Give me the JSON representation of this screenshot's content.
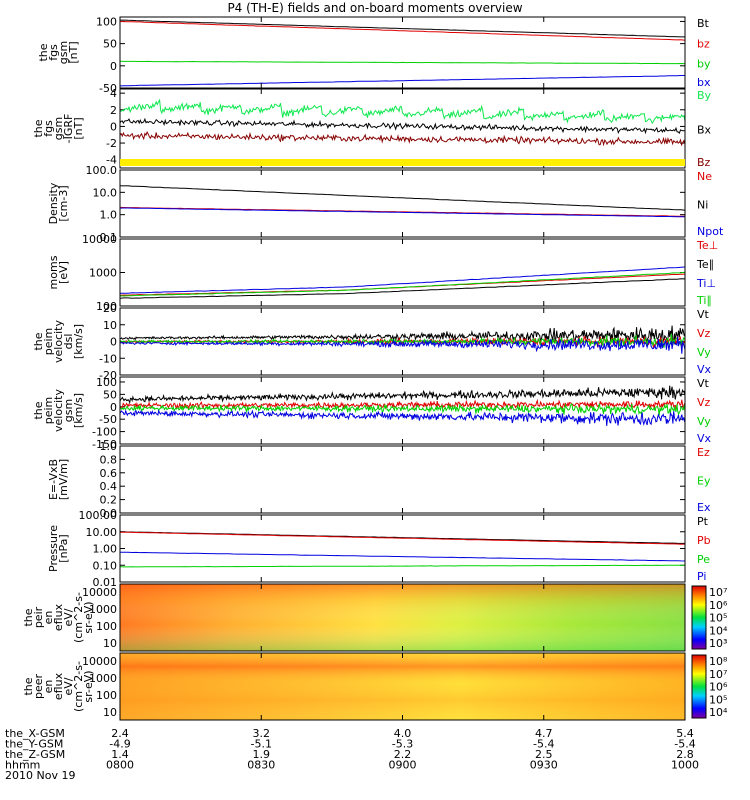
{
  "title": "P4 (TH-E) fields and on-board moments overview",
  "colors": {
    "black": "#000000",
    "red": "#e00000",
    "green": "#00d000",
    "blue": "#0000e0",
    "brightgreen": "#10e850",
    "darkred": "#880000",
    "yellow": "#ffee00"
  },
  "chart_data": [
    {
      "id": "fgs",
      "type": "line",
      "ylabel": [
        "the",
        "fgs",
        "gsm",
        "[nT]"
      ],
      "yticks": [
        "100",
        "50",
        "0",
        "-50"
      ],
      "ylim": [
        -50,
        110
      ],
      "x": [
        0,
        120
      ],
      "series": [
        {
          "name": "Bt",
          "color": "#000000",
          "values": [
            103,
            65
          ]
        },
        {
          "name": "bz",
          "color": "#e00000",
          "values": [
            100,
            58
          ]
        },
        {
          "name": "by",
          "color": "#00d000",
          "values": [
            10,
            5
          ]
        },
        {
          "name": "bx",
          "color": "#0000e0",
          "values": [
            -45,
            -22
          ]
        }
      ]
    },
    {
      "id": "fgs-dgsm",
      "type": "line",
      "ylabel": [
        "the",
        "fgs",
        "gsm",
        "-IGRF",
        "[nT]"
      ],
      "yticks": [
        "4",
        "2",
        "0",
        "-2",
        "-4"
      ],
      "ylim": [
        -5,
        4.5
      ],
      "series": [
        {
          "name": "By",
          "color": "#10e850",
          "start": 2.4,
          "end": 1.0,
          "noise": 0.6,
          "sawtooth": 1.0
        },
        {
          "name": "Bx",
          "color": "#000000",
          "start": 0.6,
          "end": -0.5,
          "noise": 0.45
        },
        {
          "name": "Bz",
          "color": "#880000",
          "start": -1.1,
          "end": -1.9,
          "noise": 0.55
        }
      ]
    },
    {
      "id": "density",
      "type": "line",
      "log": true,
      "ylabel": [
        "Density",
        "[cm-3]"
      ],
      "yticks": [
        "100.0",
        "10.0",
        "1.0",
        "0.1"
      ],
      "ylim": [
        0.1,
        100
      ],
      "series": [
        {
          "name": "Ne",
          "color": "#e00000",
          "values": [
            2.1,
            0.85
          ]
        },
        {
          "name": "Ni",
          "color": "#000000",
          "values": [
            20,
            1.6
          ]
        },
        {
          "name": "Npot",
          "color": "#0000e0",
          "values": [
            2.0,
            0.8
          ]
        }
      ]
    },
    {
      "id": "temp",
      "type": "line",
      "log": true,
      "ylabel": [
        "moms",
        "[eV]"
      ],
      "yticks": [
        "10000",
        "1000",
        "100"
      ],
      "ylim": [
        100,
        10000
      ],
      "series": [
        {
          "name": "Te⊥",
          "color": "#e00000",
          "values": [
            210,
            900
          ]
        },
        {
          "name": "Te∥",
          "color": "#000000",
          "values": [
            170,
            650
          ]
        },
        {
          "name": "Ti⊥",
          "color": "#0000e0",
          "values": [
            240,
            1450
          ]
        },
        {
          "name": "Ti∥",
          "color": "#00d000",
          "values": [
            200,
            1000
          ]
        }
      ]
    },
    {
      "id": "peim-dsl",
      "type": "line",
      "ylabel": [
        "the",
        "peim",
        "velocity",
        "dsl",
        "[km/s]"
      ],
      "yticks": [
        "20",
        "10",
        "0",
        "-10",
        "-20"
      ],
      "ylim": [
        -20,
        20
      ],
      "series": [
        {
          "name": "Vt",
          "color": "#000000",
          "base": 2,
          "noise0": 1,
          "noise1": 8
        },
        {
          "name": "Vz",
          "color": "#e00000",
          "base": 0,
          "noise0": 1,
          "noise1": 5
        },
        {
          "name": "Vy",
          "color": "#00d000",
          "base": 0,
          "noise0": 1,
          "noise1": 5
        },
        {
          "name": "Vx",
          "color": "#0000e0",
          "base": -1,
          "noise0": 1,
          "noise1": 7
        }
      ]
    },
    {
      "id": "peim-gsm",
      "type": "line",
      "ylabel": [
        "the",
        "peim",
        "velocity",
        "gsm",
        "[km/s]"
      ],
      "yticks": [
        "100",
        "50",
        "0",
        "-50",
        "-100",
        "-150"
      ],
      "ylim": [
        -150,
        120
      ],
      "series": [
        {
          "name": "Vt",
          "color": "#000000",
          "base": 30,
          "noise0": 15,
          "noise1": 35
        },
        {
          "name": "Vz",
          "color": "#e00000",
          "base": 5,
          "noise0": 15,
          "noise1": 25
        },
        {
          "name": "Vy",
          "color": "#00d000",
          "base": -5,
          "noise0": 15,
          "noise1": 30
        },
        {
          "name": "Vx",
          "color": "#0000e0",
          "base": -25,
          "noise0": 15,
          "noise1": 45
        }
      ]
    },
    {
      "id": "efield",
      "type": "line",
      "ylabel": [
        "E=-VxB",
        "[mV/m]"
      ],
      "yticks": [
        "1.0",
        "0.8",
        "0.6",
        "0.4",
        "0.2",
        "0.0"
      ],
      "ylim": [
        0,
        1
      ],
      "series": [
        {
          "name": "Ez",
          "color": "#e00000"
        },
        {
          "name": "Ey",
          "color": "#00d000"
        },
        {
          "name": "Ex",
          "color": "#0000e0"
        }
      ]
    },
    {
      "id": "pressure",
      "type": "line",
      "log": true,
      "ylabel": [
        "Pressure",
        "[nPa]"
      ],
      "yticks": [
        "100.00",
        "10.00",
        "1.00",
        "0.10",
        "0.01"
      ],
      "ylim": [
        0.01,
        100
      ],
      "series": [
        {
          "name": "Pt",
          "color": "#000000",
          "values": [
            10,
            2
          ]
        },
        {
          "name": "Pb",
          "color": "#e00000",
          "values": [
            9.5,
            1.8
          ]
        },
        {
          "name": "Pe",
          "color": "#00d000",
          "values": [
            0.08,
            0.1
          ]
        },
        {
          "name": "Pi",
          "color": "#0000e0",
          "values": [
            0.6,
            0.18
          ]
        }
      ]
    },
    {
      "id": "peir",
      "type": "heatmap",
      "ylabel": [
        "the",
        "peir",
        "en",
        "eflux",
        "eV/",
        "(cm^2-s-",
        "sr-eV)"
      ],
      "yticks": [
        "10000",
        "1000",
        "100",
        "10"
      ],
      "colorbar_ticks": [
        "10⁷",
        "10⁶",
        "10⁵",
        "10⁴",
        "10³"
      ]
    },
    {
      "id": "peer",
      "type": "heatmap",
      "ylabel": [
        "the",
        "peer",
        "en",
        "eflux",
        "eV/",
        "(cm^2-s-",
        "sr-eV)"
      ],
      "yticks": [
        "10000",
        "1000",
        "100",
        "10"
      ],
      "colorbar_ticks": [
        "10⁸",
        "10⁷",
        "10⁶",
        "10⁵",
        "10⁴"
      ]
    }
  ],
  "footer": {
    "rows": [
      {
        "label": "the_X-GSM",
        "values": [
          "2.4",
          "3.2",
          "4.0",
          "4.7",
          "5.4"
        ]
      },
      {
        "label": "the_Y-GSM",
        "values": [
          "-4.9",
          "-5.1",
          "-5.3",
          "-5.4",
          "-5.4"
        ]
      },
      {
        "label": "the_Z-GSM",
        "values": [
          "1.4",
          "1.9",
          "2.2",
          "2.5",
          "2.8"
        ]
      },
      {
        "label": "hhmm",
        "values": [
          "0800",
          "0830",
          "0900",
          "0930",
          "1000"
        ]
      }
    ],
    "date": "2010 Nov 19"
  }
}
